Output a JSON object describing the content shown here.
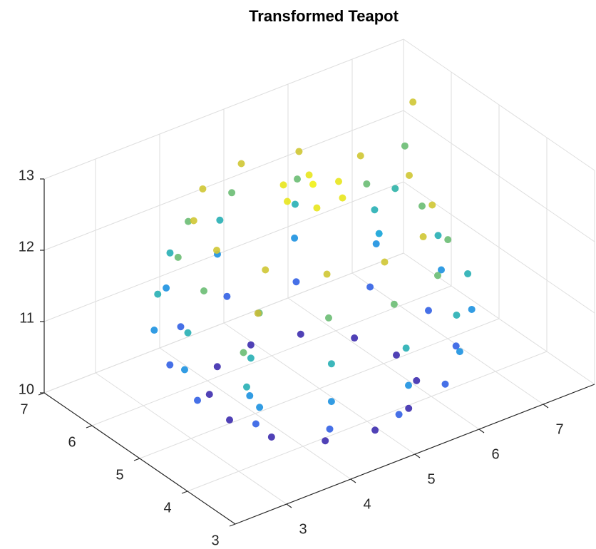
{
  "chart_data": {
    "type": "scatter3d",
    "title": "Transformed Teapot",
    "x": [
      6.2,
      6.03,
      5.55,
      4.9,
      4.25,
      3.77,
      3.6,
      3.77,
      4.25,
      4.9,
      5.55,
      6.03,
      6.7,
      6.46,
      5.8,
      4.9,
      4,
      3.34,
      3.1,
      3.34,
      4,
      4.9,
      5.8,
      6.46,
      6.9,
      6.63,
      5.9,
      4.9,
      3.9,
      3.17,
      2.9,
      3.17,
      3.9,
      4.9,
      5.9,
      6.63,
      6.85,
      6.59,
      5.88,
      4.9,
      3.93,
      3.21,
      2.95,
      3.21,
      3.93,
      4.9,
      5.88,
      6.59,
      6.6,
      6.37,
      5.75,
      4.9,
      4.05,
      3.43,
      3.2,
      3.43,
      4.05,
      4.9,
      5.75,
      6.37,
      6.4,
      6.2,
      5.65,
      4.9,
      4.15,
      3.6,
      3.4,
      3.6,
      4.15,
      4.9,
      5.65,
      6.2,
      5.3,
      5.1,
      4.7,
      4.5,
      4.7,
      5.1,
      4.9,
      6.6,
      7.0,
      7.3,
      7.5,
      3.1,
      2.75,
      2.7,
      3.0
    ],
    "y": [
      5,
      5.65,
      6.13,
      6.3,
      6.13,
      5.65,
      5,
      4.35,
      3.87,
      3.7,
      3.87,
      4.35,
      5,
      5.9,
      6.56,
      6.8,
      6.56,
      5.9,
      5,
      4.1,
      3.44,
      3.2,
      3.44,
      4.1,
      5,
      6,
      6.73,
      7,
      6.73,
      6,
      5,
      4,
      3.27,
      3,
      3.27,
      4,
      5,
      5.98,
      6.69,
      6.95,
      6.69,
      5.98,
      5,
      4.03,
      3.31,
      3.05,
      3.31,
      4.03,
      5,
      5.85,
      6.47,
      6.7,
      6.47,
      5.85,
      5,
      4.15,
      3.53,
      3.3,
      3.53,
      4.15,
      5,
      5.75,
      6.3,
      6.5,
      6.3,
      5.75,
      5,
      4.25,
      3.7,
      3.5,
      3.7,
      4.25,
      5,
      5.35,
      5.35,
      5,
      4.65,
      4.65,
      5,
      5.9,
      6.1,
      6.3,
      6.4,
      3.7,
      3.5,
      3.5,
      3.6
    ],
    "z": [
      10.05,
      10.05,
      10.05,
      10.05,
      10.05,
      10.05,
      10.05,
      10.05,
      10.05,
      10.05,
      10.05,
      10.05,
      10.5,
      10.5,
      10.5,
      10.5,
      10.5,
      10.5,
      10.5,
      10.5,
      10.5,
      10.5,
      10.5,
      10.5,
      11,
      11,
      11,
      11,
      11,
      11,
      11,
      11,
      11,
      11,
      11,
      11,
      11.5,
      11.5,
      11.5,
      11.5,
      11.5,
      11.5,
      11.5,
      11.5,
      11.5,
      11.5,
      11.5,
      11.5,
      12,
      12,
      12,
      12,
      12,
      12,
      12,
      12,
      12,
      12,
      12,
      12,
      12.5,
      12.5,
      12.5,
      12.5,
      12.5,
      12.5,
      12.5,
      12.5,
      12.5,
      12.5,
      12.5,
      12.5,
      12.8,
      12.8,
      12.8,
      12.8,
      12.8,
      12.8,
      12.9,
      11.2,
      11.6,
      12.0,
      12.5,
      11.0,
      11.5,
      12.0,
      12.4
    ],
    "xlim": [
      2.2,
      7.8
    ],
    "ylim": [
      3,
      7
    ],
    "zlim": [
      10,
      13
    ],
    "xticks": [
      3,
      4,
      5,
      6,
      7
    ],
    "yticks": [
      3,
      4,
      5,
      6,
      7
    ],
    "zticks": [
      10,
      11,
      12,
      13
    ],
    "grid": true,
    "colormap": [
      "#3e26a8",
      "#2f6cf0",
      "#13a3d8",
      "#3bbb8f",
      "#c7bd3a",
      "#f9fb0e"
    ]
  }
}
